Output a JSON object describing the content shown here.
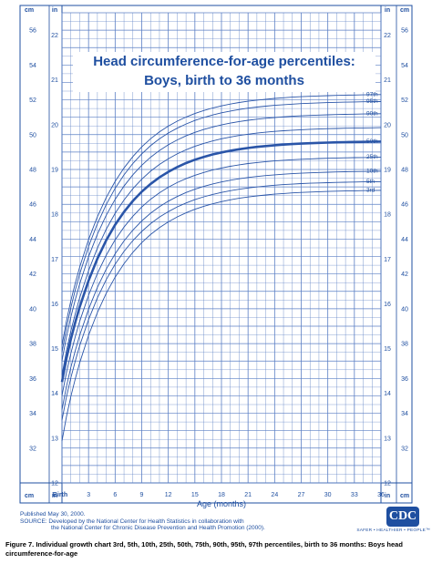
{
  "colors": {
    "blue": "#1f4fa0",
    "grid": "#5b7fc4",
    "curve": "#2a55a8"
  },
  "chart_data": {
    "type": "line",
    "title": "Head circumference-for-age percentiles:",
    "subtitle": "Boys, birth to 36 months",
    "xlabel": "Age (months)",
    "xlim": [
      0,
      36
    ],
    "x_ticks": [
      {
        "value": 0,
        "label": "Birth"
      },
      {
        "value": 3,
        "label": "3"
      },
      {
        "value": 6,
        "label": "6"
      },
      {
        "value": 9,
        "label": "9"
      },
      {
        "value": 12,
        "label": "12"
      },
      {
        "value": 15,
        "label": "15"
      },
      {
        "value": 18,
        "label": "18"
      },
      {
        "value": 21,
        "label": "21"
      },
      {
        "value": 24,
        "label": "24"
      },
      {
        "value": 27,
        "label": "27"
      },
      {
        "value": 30,
        "label": "30"
      },
      {
        "value": 33,
        "label": "33"
      },
      {
        "value": 36,
        "label": "36"
      }
    ],
    "y_cm": {
      "unit": "cm",
      "lim": [
        30,
        57
      ],
      "tick_labels": [
        30,
        32,
        34,
        36,
        38,
        40,
        42,
        44,
        46,
        48,
        50,
        52,
        54,
        56
      ]
    },
    "y_in": {
      "unit": "in",
      "lim": [
        12,
        22.5
      ],
      "tick_labels": [
        12,
        13,
        14,
        15,
        16,
        17,
        18,
        19,
        20,
        21,
        22
      ]
    },
    "x": [
      0,
      0.5,
      1,
      1.5,
      2,
      3,
      4,
      5,
      6,
      7,
      8,
      9,
      10,
      11,
      12,
      13,
      14,
      15,
      16,
      17,
      18,
      19,
      20,
      21,
      22,
      23,
      24,
      25,
      26,
      27,
      28,
      29,
      30,
      31,
      32,
      33,
      34,
      35,
      36
    ],
    "series": [
      {
        "name": "97th",
        "label": "97th",
        "start": 37.9,
        "end": 52.3
      },
      {
        "name": "95th",
        "label": "95th",
        "start": 37.5,
        "end": 51.9
      },
      {
        "name": "90th",
        "label": "90th",
        "start": 37.0,
        "end": 51.2
      },
      {
        "name": "75th",
        "label": "",
        "start": 36.2,
        "end": 50.4
      },
      {
        "name": "50th",
        "label": "50th",
        "start": 35.8,
        "end": 49.6
      },
      {
        "name": "25th",
        "label": "25th",
        "start": 35.0,
        "end": 48.7
      },
      {
        "name": "10th",
        "label": "10th",
        "start": 34.2,
        "end": 47.9
      },
      {
        "name": "5th",
        "label": "5th",
        "start": 33.6,
        "end": 47.3
      },
      {
        "name": "3rd",
        "label": "3rd",
        "start": 32.4,
        "end": 46.8
      }
    ],
    "highlight_series": "50th",
    "curve_shape_k": 0.165
  },
  "footer": {
    "published": "Published May 30, 2000.",
    "source_line1": "SOURCE: Developed by the National Center for Health Statistics in collaboration with",
    "source_line2": "the National Center for Chronic Disease Prevention and Health Promotion (2000).",
    "logo_text": "CDC",
    "tagline": "SAFER • HEALTHIER • PEOPLE™"
  },
  "caption": "Figure 7. Individual growth chart 3rd, 5th, 10th, 25th, 50th, 75th, 90th, 95th, 97th percentiles, birth to 36 months: Boys head circumference-for-age"
}
